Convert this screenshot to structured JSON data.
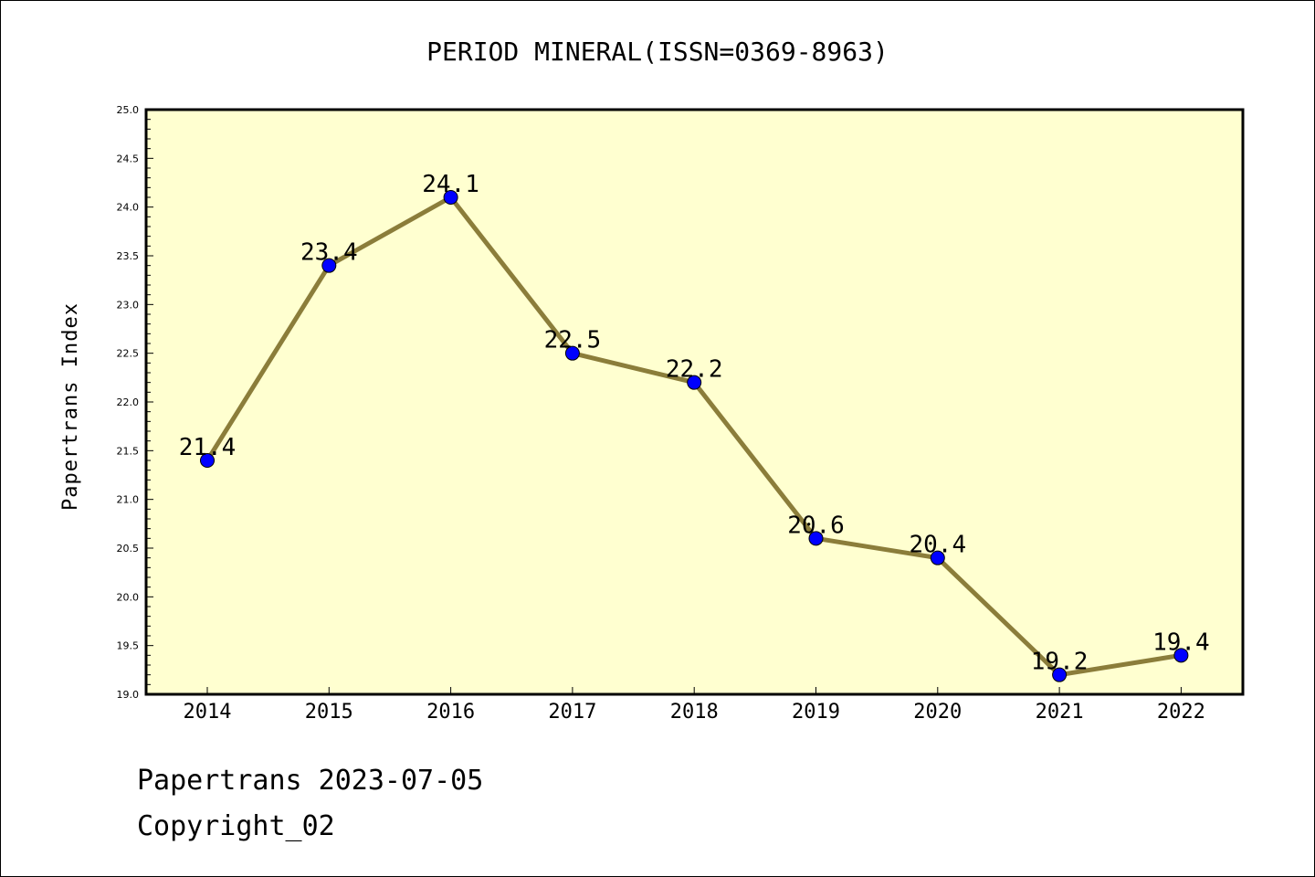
{
  "chart_data": {
    "type": "line",
    "title": "PERIOD MINERAL(ISSN=0369-8963)",
    "xlabel": "",
    "ylabel": "Papertrans Index",
    "categories": [
      "2014",
      "2015",
      "2016",
      "2017",
      "2018",
      "2019",
      "2020",
      "2021",
      "2022"
    ],
    "values": [
      21.4,
      23.4,
      24.1,
      22.5,
      22.2,
      20.6,
      20.4,
      19.2,
      19.4
    ],
    "data_labels": [
      "21.4",
      "23.4",
      "24.1",
      "22.5",
      "22.2",
      "20.6",
      "20.4",
      "19.2",
      "19.4"
    ],
    "ylim": [
      19.0,
      25.0
    ],
    "yticks": [
      "19.0",
      "19.5",
      "20.0",
      "20.5",
      "21.0",
      "21.5",
      "22.0",
      "22.5",
      "23.0",
      "23.5",
      "24.0",
      "24.5",
      "25.0"
    ],
    "grid": false,
    "colors": {
      "plot_background": "#FFFFD0",
      "line": "#8B7D3A",
      "marker": "#0000FF"
    }
  },
  "footer": {
    "line1": "Papertrans 2023-07-05",
    "line2": "Copyright_02"
  }
}
